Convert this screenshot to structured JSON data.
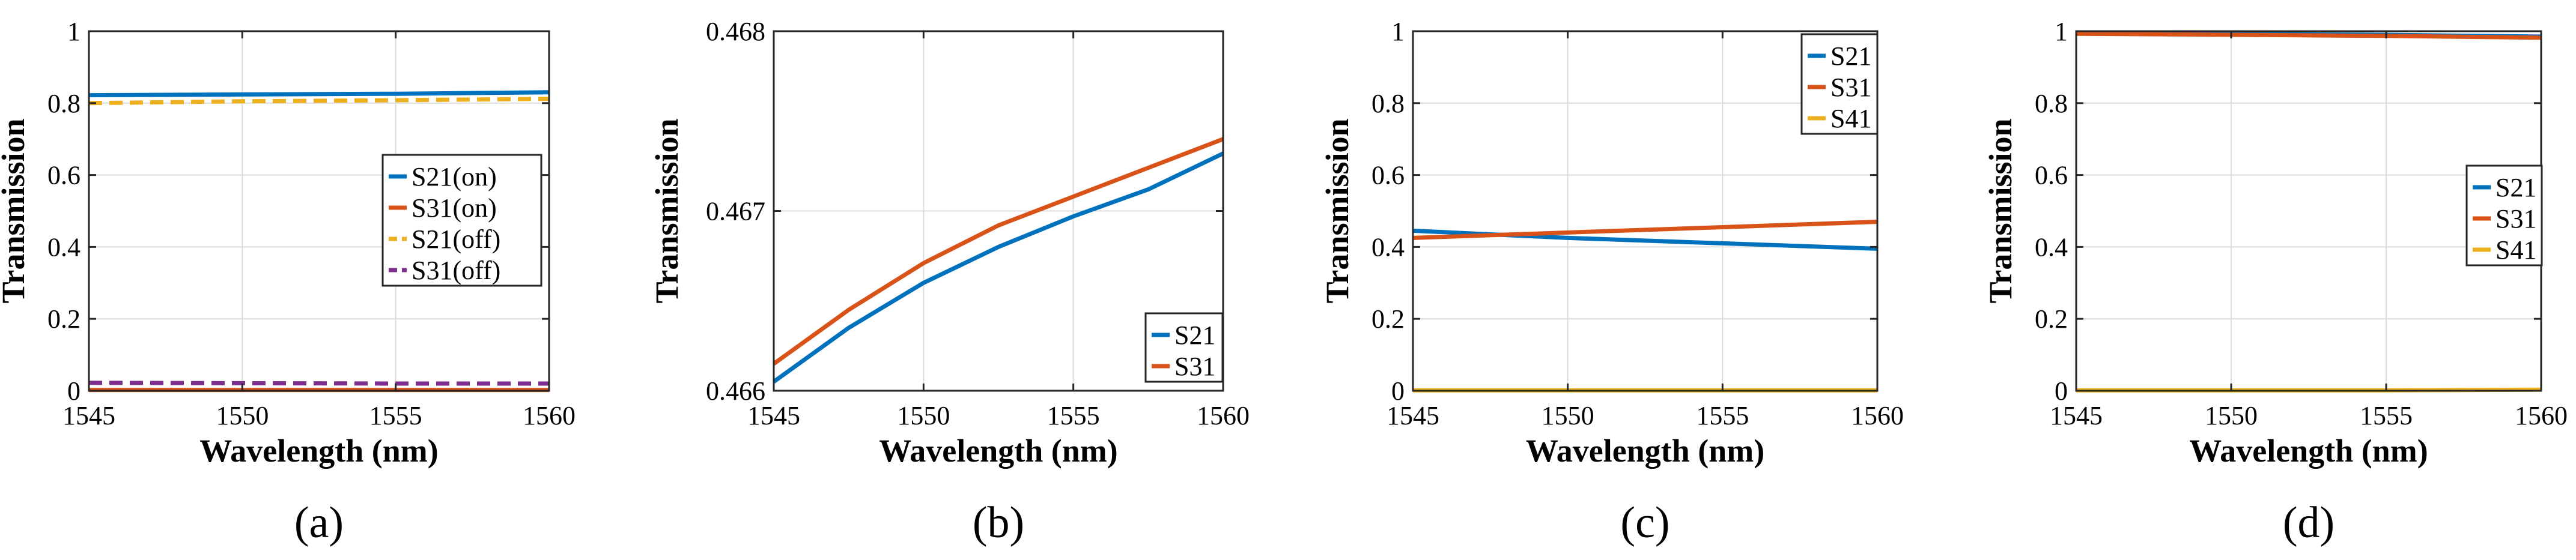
{
  "figure": {
    "panels": [
      "(a)",
      "(b)",
      "(c)",
      "(d)"
    ]
  },
  "chart_data": [
    {
      "type": "line",
      "panel_label": "(a)",
      "xlabel": "Wavelength (nm)",
      "ylabel": "Transmission",
      "xlim": [
        1545,
        1560
      ],
      "ylim": [
        0,
        1
      ],
      "xticks": [
        1545,
        1550,
        1555,
        1560
      ],
      "yticks": [
        0,
        0.2,
        0.4,
        0.6,
        0.8,
        1
      ],
      "xtick_labels": [
        "1545",
        "1550",
        "1555",
        "1560"
      ],
      "ytick_labels": [
        "0",
        "0.2",
        "0.4",
        "0.6",
        "0.8",
        "1"
      ],
      "grid": true,
      "legend_position": "middle-right",
      "series": [
        {
          "name": "S21(on)",
          "color": "#0072BD",
          "dashed": false,
          "x": [
            1545,
            1550,
            1555,
            1560
          ],
          "y": [
            0.822,
            0.824,
            0.826,
            0.83
          ]
        },
        {
          "name": "S31(on)",
          "color": "#D95319",
          "dashed": false,
          "x": [
            1545,
            1550,
            1555,
            1560
          ],
          "y": [
            0.002,
            0.002,
            0.002,
            0.002
          ]
        },
        {
          "name": "S21(off)",
          "color": "#EDB120",
          "dashed": true,
          "x": [
            1545,
            1550,
            1555,
            1560
          ],
          "y": [
            0.8,
            0.805,
            0.808,
            0.812
          ]
        },
        {
          "name": "S31(off)",
          "color": "#7E2F8E",
          "dashed": true,
          "x": [
            1545,
            1550,
            1555,
            1560
          ],
          "y": [
            0.022,
            0.021,
            0.02,
            0.02
          ]
        }
      ]
    },
    {
      "type": "line",
      "panel_label": "(b)",
      "xlabel": "Wavelength (nm)",
      "ylabel": "Transmission",
      "xlim": [
        1545,
        1560
      ],
      "ylim": [
        0.466,
        0.468
      ],
      "xticks": [
        1545,
        1550,
        1555,
        1560
      ],
      "yticks": [
        0.466,
        0.467,
        0.468
      ],
      "xtick_labels": [
        "1545",
        "1550",
        "1555",
        "1560"
      ],
      "ytick_labels": [
        "0.466",
        "0.467",
        "0.468"
      ],
      "grid": true,
      "legend_position": "bottom-right",
      "series": [
        {
          "name": "S21",
          "color": "#0072BD",
          "dashed": false,
          "x": [
            1545,
            1547.5,
            1550,
            1552.5,
            1555,
            1557.5,
            1560
          ],
          "y": [
            0.46605,
            0.46635,
            0.4666,
            0.4668,
            0.46697,
            0.46712,
            0.46732
          ]
        },
        {
          "name": "S31",
          "color": "#D95319",
          "dashed": false,
          "x": [
            1545,
            1547.5,
            1550,
            1552.5,
            1555,
            1557.5,
            1560
          ],
          "y": [
            0.46615,
            0.46645,
            0.46671,
            0.46692,
            0.46708,
            0.46724,
            0.4674
          ]
        }
      ]
    },
    {
      "type": "line",
      "panel_label": "(c)",
      "xlabel": "Wavelength (nm)",
      "ylabel": "Transmission",
      "xlim": [
        1545,
        1560
      ],
      "ylim": [
        0,
        1
      ],
      "xticks": [
        1545,
        1550,
        1555,
        1560
      ],
      "yticks": [
        0,
        0.2,
        0.4,
        0.6,
        0.8,
        1
      ],
      "xtick_labels": [
        "1545",
        "1550",
        "1555",
        "1560"
      ],
      "ytick_labels": [
        "0",
        "0.2",
        "0.4",
        "0.6",
        "0.8",
        "1"
      ],
      "grid": true,
      "legend_position": "top-right",
      "series": [
        {
          "name": "S21",
          "color": "#0072BD",
          "dashed": false,
          "x": [
            1545,
            1550,
            1555,
            1560
          ],
          "y": [
            0.445,
            0.425,
            0.41,
            0.395
          ]
        },
        {
          "name": "S31",
          "color": "#D95319",
          "dashed": false,
          "x": [
            1545,
            1550,
            1555,
            1560
          ],
          "y": [
            0.425,
            0.44,
            0.455,
            0.47
          ]
        },
        {
          "name": "S41",
          "color": "#EDB120",
          "dashed": false,
          "x": [
            1545,
            1550,
            1555,
            1560
          ],
          "y": [
            0.001,
            0.001,
            0.001,
            0.001
          ]
        }
      ]
    },
    {
      "type": "line",
      "panel_label": "(d)",
      "xlabel": "Wavelength (nm)",
      "ylabel": "Transmission",
      "xlim": [
        1545,
        1560
      ],
      "ylim": [
        0,
        1
      ],
      "xticks": [
        1545,
        1550,
        1555,
        1560
      ],
      "yticks": [
        0,
        0.2,
        0.4,
        0.6,
        0.8,
        1
      ],
      "xtick_labels": [
        "1545",
        "1550",
        "1555",
        "1560"
      ],
      "ytick_labels": [
        "0",
        "0.2",
        "0.4",
        "0.6",
        "0.8",
        "1"
      ],
      "grid": true,
      "legend_position": "middle-right",
      "series": [
        {
          "name": "S21",
          "color": "#0072BD",
          "dashed": false,
          "x": [
            1545,
            1550,
            1555,
            1560
          ],
          "y": [
            0.995,
            0.993,
            0.99,
            0.985
          ]
        },
        {
          "name": "S31",
          "color": "#D95319",
          "dashed": false,
          "x": [
            1545,
            1550,
            1555,
            1560
          ],
          "y": [
            0.993,
            0.99,
            0.987,
            0.982
          ]
        },
        {
          "name": "S41",
          "color": "#EDB120",
          "dashed": false,
          "x": [
            1545,
            1550,
            1555,
            1560
          ],
          "y": [
            0.001,
            0.001,
            0.001,
            0.003
          ]
        }
      ]
    }
  ]
}
